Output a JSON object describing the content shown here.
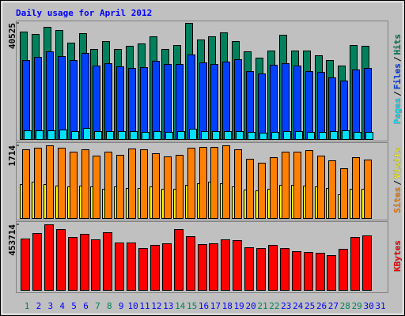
{
  "chart_data": [
    {
      "type": "bar",
      "title": "Daily usage for April 2012",
      "separator": "/",
      "ylim": [
        0,
        40525
      ],
      "yticks": [
        40525
      ],
      "series": [
        {
          "name": "Pages",
          "color": "#00e0ff",
          "values": [
            3030,
            3030,
            3030,
            3310,
            2760,
            3860,
            2760,
            2760,
            2760,
            2760,
            2480,
            2760,
            2480,
            2760,
            3580,
            2760,
            2760,
            2760,
            2760,
            2480,
            2210,
            2480,
            2760,
            2760,
            2480,
            2480,
            2760,
            3030,
            2480,
            2480,
            null
          ]
        },
        {
          "name": "Files",
          "color": "#0040ff",
          "values": [
            27570,
            28670,
            30600,
            28950,
            27570,
            30050,
            25640,
            26470,
            25360,
            24810,
            25090,
            27290,
            26190,
            26190,
            29500,
            26740,
            26190,
            27020,
            27850,
            23710,
            22880,
            25920,
            26470,
            25640,
            23710,
            23430,
            21500,
            20400,
            24260,
            24810,
            null
          ]
        },
        {
          "name": "Hits",
          "color": "#00805c",
          "values": [
            37490,
            36670,
            39150,
            38050,
            33630,
            36940,
            31430,
            34190,
            31430,
            32530,
            33360,
            35840,
            31430,
            32810,
            40525,
            34740,
            35840,
            37220,
            34190,
            30600,
            28400,
            30880,
            36390,
            30880,
            30880,
            29220,
            27570,
            25640,
            32810,
            32530,
            null
          ]
        }
      ]
    },
    {
      "type": "bar",
      "separator": "/",
      "ylim": [
        0,
        1714
      ],
      "yticks": [
        1714
      ],
      "series": [
        {
          "name": "Sites",
          "color": "#ff8000",
          "values": [
            1621,
            1658,
            1714,
            1658,
            1565,
            1621,
            1472,
            1565,
            1490,
            1639,
            1621,
            1528,
            1453,
            1490,
            1658,
            1677,
            1677,
            1714,
            1621,
            1397,
            1304,
            1434,
            1565,
            1565,
            1602,
            1472,
            1360,
            1174,
            1434,
            1379,
            null
          ]
        },
        {
          "name": "Visits",
          "color": "#ffff00",
          "values": [
            801,
            857,
            801,
            764,
            745,
            764,
            745,
            689,
            745,
            708,
            708,
            745,
            689,
            689,
            782,
            820,
            857,
            820,
            745,
            671,
            652,
            689,
            782,
            782,
            764,
            745,
            708,
            559,
            689,
            689,
            null
          ]
        }
      ]
    },
    {
      "type": "bar",
      "ylim": [
        0,
        453714
      ],
      "yticks": [
        453714
      ],
      "categories": [
        "1",
        "2",
        "3",
        "4",
        "5",
        "6",
        "7",
        "8",
        "9",
        "10",
        "11",
        "12",
        "13",
        "14",
        "15",
        "16",
        "17",
        "18",
        "19",
        "20",
        "21",
        "22",
        "23",
        "24",
        "25",
        "26",
        "27",
        "28",
        "29",
        "30",
        "31"
      ],
      "category_colors": [
        "#00805c",
        "#0000ff",
        "#0000ff",
        "#0000ff",
        "#0000ff",
        "#0000ff",
        "#00805c",
        "#00805c",
        "#0000ff",
        "#0000ff",
        "#0000ff",
        "#0000ff",
        "#0000ff",
        "#00805c",
        "#00805c",
        "#0000ff",
        "#0000ff",
        "#0000ff",
        "#0000ff",
        "#0000ff",
        "#00805c",
        "#00805c",
        "#0000ff",
        "#0000ff",
        "#0000ff",
        "#0000ff",
        "#0000ff",
        "#00805c",
        "#00805c",
        "#0000ff",
        "#0000ff"
      ],
      "series": [
        {
          "name": "KBytes",
          "color": "#ff0000",
          "values": [
            355290,
            393550,
            453714,
            420880,
            366220,
            388090,
            349820,
            399020,
            327960,
            327960,
            289700,
            311560,
            322490,
            420880,
            371690,
            317030,
            322490,
            349820,
            344360,
            295160,
            289700,
            311560,
            289700,
            267830,
            262370,
            256900,
            240500,
            284230,
            366220,
            377150,
            null
          ]
        }
      ]
    }
  ]
}
